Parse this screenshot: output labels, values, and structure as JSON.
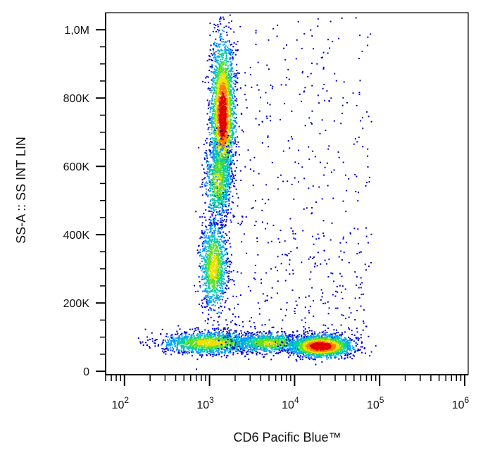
{
  "chart_data": {
    "type": "scatter",
    "subtype": "flow-cytometry density dot plot",
    "xlabel": "CD6 Pacific Blue™",
    "ylabel": "SS-A :: SS INT LIN",
    "xscale": "log",
    "xlim": [
      60,
      1100000
    ],
    "ylim": [
      -10000,
      1050000
    ],
    "yscale": "linear",
    "x_ticks": [
      {
        "value": 100,
        "base": "10",
        "exp": "2"
      },
      {
        "value": 1000,
        "base": "10",
        "exp": "3"
      },
      {
        "value": 10000,
        "base": "10",
        "exp": "4"
      },
      {
        "value": 100000,
        "base": "10",
        "exp": "5"
      },
      {
        "value": 1000000,
        "base": "10",
        "exp": "6"
      }
    ],
    "y_ticks": [
      {
        "value": 0,
        "label": "0"
      },
      {
        "value": 200000,
        "label": "200K"
      },
      {
        "value": 400000,
        "label": "400K"
      },
      {
        "value": 600000,
        "label": "600K"
      },
      {
        "value": 800000,
        "label": "800K"
      },
      {
        "value": 1000000,
        "label": "1,0M"
      }
    ],
    "grid": false,
    "legend": "none",
    "density_colormap": [
      "#0000cc",
      "#00a0ff",
      "#00d0a0",
      "#60e020",
      "#f0e000",
      "#ff8000",
      "#e00000"
    ],
    "populations": [
      {
        "cx": 1400,
        "cy": 750000,
        "sx_log10": 0.07,
        "sy": 110000,
        "count": 2600,
        "peak_density": 0.95
      },
      {
        "cx": 1250,
        "cy": 560000,
        "sx_log10": 0.08,
        "sy": 60000,
        "count": 700,
        "peak_density": 0.55
      },
      {
        "cx": 1100,
        "cy": 310000,
        "sx_log10": 0.08,
        "sy": 65000,
        "count": 1100,
        "peak_density": 0.6
      },
      {
        "cx": 1000,
        "cy": 85000,
        "sx_log10": 0.28,
        "sy": 16000,
        "count": 1400,
        "peak_density": 0.6
      },
      {
        "cx": 5000,
        "cy": 85000,
        "sx_log10": 0.22,
        "sy": 14000,
        "count": 900,
        "peak_density": 0.55
      },
      {
        "cx": 20000,
        "cy": 75000,
        "sx_log10": 0.18,
        "sy": 16000,
        "count": 1800,
        "peak_density": 1.0
      }
    ],
    "scatter_background": {
      "count": 550,
      "x_range": [
        1500,
        80000
      ],
      "y_range": [
        100000,
        1040000
      ],
      "density": 0.1
    }
  }
}
